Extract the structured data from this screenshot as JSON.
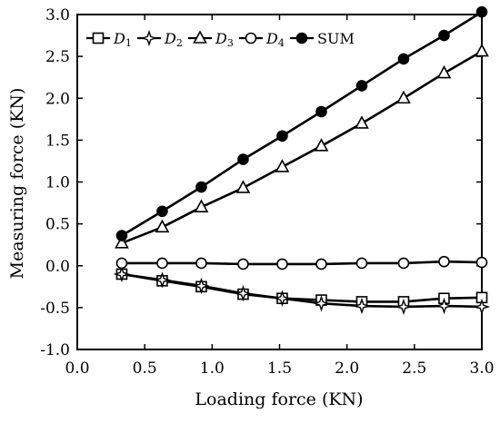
{
  "chart_data": {
    "type": "line",
    "xlabel": "Loading force (KN)",
    "ylabel": "Measuring force (KN)",
    "xlim": [
      0.0,
      3.0
    ],
    "ylim": [
      -1.0,
      3.0
    ],
    "xticks": [
      "0.0",
      "0.5",
      "1.0",
      "1.5",
      "2.0",
      "2.5",
      "3.0"
    ],
    "yticks": [
      "-1.0",
      "-0.5",
      "0.0",
      "0.5",
      "1.0",
      "1.5",
      "2.0",
      "2.5",
      "3.0"
    ],
    "grid": false,
    "legend_position": "top-left",
    "x": [
      0.33,
      0.63,
      0.92,
      1.23,
      1.52,
      1.81,
      2.11,
      2.42,
      2.72,
      3.0
    ],
    "series": [
      {
        "name": "D1",
        "name_main": "D",
        "name_sub": "1",
        "marker": "square-open",
        "values": [
          -0.1,
          -0.18,
          -0.25,
          -0.34,
          -0.39,
          -0.41,
          -0.43,
          -0.43,
          -0.39,
          -0.38
        ]
      },
      {
        "name": "D2",
        "name_main": "D",
        "name_sub": "2",
        "marker": "star-open",
        "values": [
          -0.1,
          -0.17,
          -0.24,
          -0.33,
          -0.39,
          -0.45,
          -0.48,
          -0.49,
          -0.48,
          -0.49
        ]
      },
      {
        "name": "D3",
        "name_main": "D",
        "name_sub": "3",
        "marker": "triangle-open",
        "values": [
          0.27,
          0.46,
          0.7,
          0.93,
          1.18,
          1.43,
          1.7,
          2.0,
          2.3,
          2.56
        ]
      },
      {
        "name": "D4",
        "name_main": "D",
        "name_sub": "4",
        "marker": "circle-open",
        "values": [
          0.03,
          0.03,
          0.03,
          0.02,
          0.02,
          0.02,
          0.03,
          0.03,
          0.05,
          0.04
        ]
      },
      {
        "name": "SUM",
        "name_main": "SUM",
        "name_sub": "",
        "marker": "circle-filled",
        "values": [
          0.36,
          0.65,
          0.94,
          1.27,
          1.55,
          1.84,
          2.15,
          2.47,
          2.75,
          3.03
        ]
      }
    ]
  }
}
